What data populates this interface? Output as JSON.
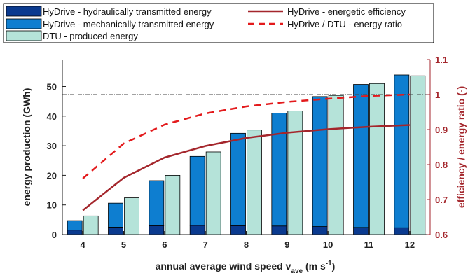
{
  "chart_data": {
    "type": "bar",
    "categories": [
      "4",
      "5",
      "6",
      "7",
      "8",
      "9",
      "10",
      "11",
      "12"
    ],
    "series": [
      {
        "name": "HyDrive - hydraulically transmitted energy",
        "type": "bar-stacked",
        "axis": "left",
        "values": [
          1.5,
          2.5,
          3.0,
          3.1,
          3.0,
          2.9,
          2.7,
          2.4,
          2.3
        ]
      },
      {
        "name": "HyDrive - mechanically transmitted energy",
        "type": "bar-stacked",
        "axis": "left",
        "values": [
          3.2,
          8.1,
          15.2,
          23.3,
          31.2,
          38.1,
          43.9,
          48.3,
          51.6
        ]
      },
      {
        "name": "DTU - produced energy",
        "type": "bar",
        "axis": "left",
        "values": [
          6.3,
          12.4,
          20.0,
          27.9,
          35.3,
          41.7,
          47.0,
          51.0,
          53.6
        ]
      },
      {
        "name": "HyDrive - energetic efficiency",
        "type": "line",
        "axis": "right",
        "values": [
          0.669,
          0.762,
          0.82,
          0.853,
          0.876,
          0.891,
          0.901,
          0.908,
          0.913
        ]
      },
      {
        "name": "HyDrive / DTU - energy ratio",
        "type": "line-dashed",
        "axis": "right",
        "values": [
          0.76,
          0.86,
          0.914,
          0.946,
          0.966,
          0.979,
          0.988,
          0.996,
          1.0
        ]
      }
    ],
    "reference_line": {
      "axis": "right",
      "value": 1.0
    },
    "xlabel": "annual average wind speed v",
    "xlabel_sub": "ave",
    "xlabel_tail": " (m s",
    "xlabel_sup": "-1",
    "xlabel_end": ")",
    "ylabel": "energy production  (GWh)",
    "ylabel_right": "efficiency / energy ratio  (-)",
    "ylim": [
      0,
      59.1
    ],
    "ylim_right": [
      0.6,
      1.1
    ],
    "yticks": [
      0,
      10,
      20,
      30,
      40,
      50
    ],
    "yticks_right": [
      "0.6",
      "0.7",
      "0.8",
      "0.9",
      "1",
      "1.1"
    ],
    "grid": false,
    "legend_position": "top-left",
    "colors": {
      "hydraulic": "#0a3a8f",
      "mechanical": "#0e7ed0",
      "dtu": "#b5e3d9",
      "efficiency": "#a4262c",
      "ratio": "#e31a1c",
      "reference": "#444444"
    }
  }
}
